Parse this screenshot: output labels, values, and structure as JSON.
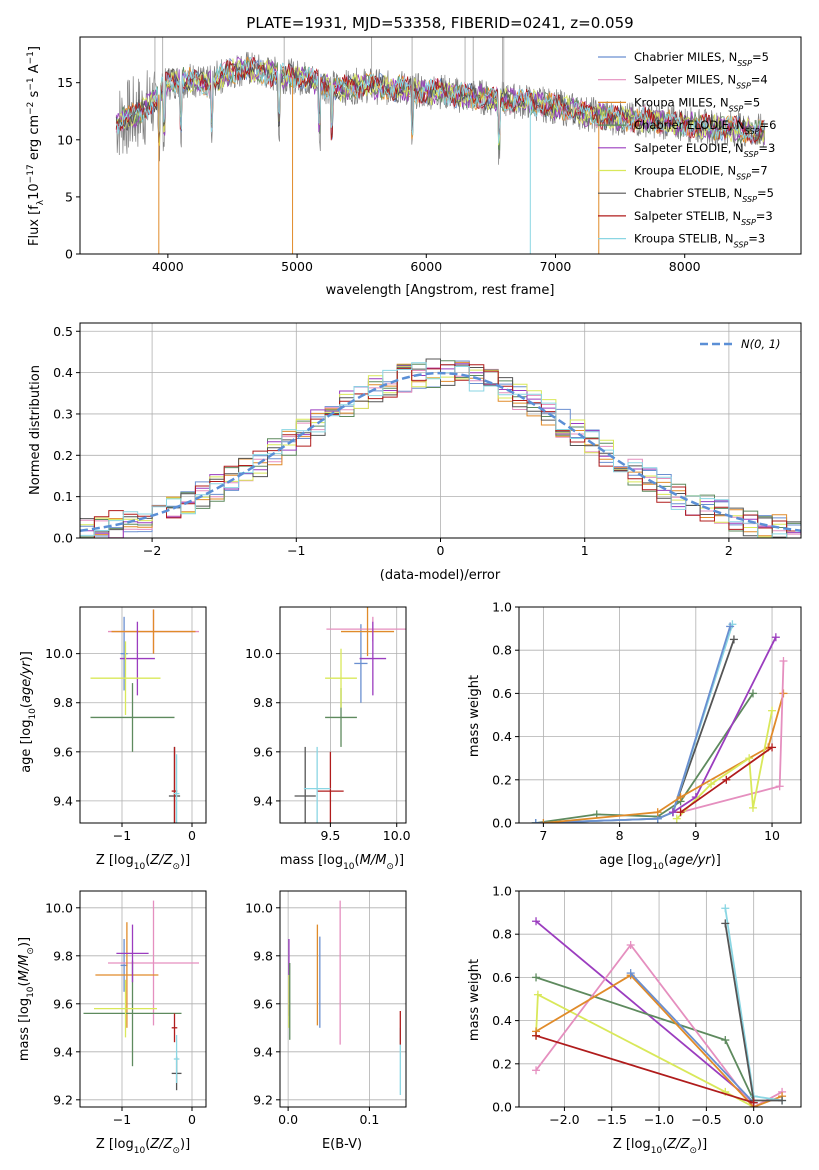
{
  "title": "PLATE=1931, MJD=53358, FIBERID=0241, z=0.059",
  "colors": [
    "#6a8fd0",
    "#e58fbf",
    "#e08b2a",
    "#5e8a5e",
    "#9b3dbf",
    "#d9e85a",
    "#555555",
    "#b01c1c",
    "#8ad6e3"
  ],
  "legend": [
    "Chabrier MILES, N$_{SSP}$=5",
    "Salpeter MILES, N$_{SSP}$=4",
    "Kroupa MILES, N$_{SSP}$=5",
    "Chabrier ELODIE, N$_{SSP}$=6",
    "Salpeter ELODIE, N$_{SSP}$=3",
    "Kroupa ELODIE, N$_{SSP}$=7",
    "Chabrier STELIB, N$_{SSP}$=5",
    "Salpeter STELIB, N$_{SSP}$=3",
    "Kroupa STELIB, N$_{SSP}$=3"
  ],
  "legend_display": [
    [
      "Chabrier MILES, N",
      "SSP",
      "=5"
    ],
    [
      "Salpeter MILES, N",
      "SSP",
      "=4"
    ],
    [
      "Kroupa MILES, N",
      "SSP",
      "=5"
    ],
    [
      "Chabrier ELODIE, N",
      "SSP",
      "=6"
    ],
    [
      "Salpeter ELODIE, N",
      "SSP",
      "=3"
    ],
    [
      "Kroupa ELODIE, N",
      "SSP",
      "=7"
    ],
    [
      "Chabrier STELIB, N",
      "SSP",
      "=5"
    ],
    [
      "Salpeter STELIB, N",
      "SSP",
      "=3"
    ],
    [
      "Kroupa STELIB, N",
      "SSP",
      "=3"
    ]
  ],
  "chart_data": [
    {
      "type": "line",
      "panel": "spectrum",
      "xlabel": "wavelength [Angstrom, rest frame]",
      "ylabel": "Flux [f_λ10^-17 erg cm^-2 s^-1 A^-1]",
      "xlim": [
        3320,
        8900
      ],
      "ylim": [
        0,
        19
      ],
      "xticks": [
        4000,
        5000,
        6000,
        7000,
        8000
      ],
      "yticks": [
        0,
        5,
        10,
        15
      ],
      "x": [
        3600,
        3700,
        3800,
        3900,
        4000,
        4100,
        4200,
        4300,
        4400,
        4500,
        4600,
        4700,
        4800,
        4900,
        5000,
        5100,
        5200,
        5300,
        5400,
        5500,
        5600,
        5700,
        5800,
        5900,
        6000,
        6100,
        6200,
        6300,
        6400,
        6500,
        6600,
        6700,
        6800,
        6900,
        7000,
        7100,
        7200,
        7300,
        7400,
        7500,
        7600,
        7700,
        7800,
        7900,
        8000,
        8100,
        8200,
        8300,
        8400,
        8500,
        8600
      ],
      "model_y": [
        11.5,
        12.0,
        12.5,
        13.5,
        15.0,
        15.2,
        15.3,
        14.8,
        15.5,
        16.0,
        16.3,
        16.0,
        15.8,
        15.6,
        15.5,
        15.3,
        14.8,
        14.5,
        14.6,
        14.8,
        14.7,
        14.5,
        14.6,
        14.3,
        14.2,
        14.3,
        14.0,
        13.8,
        13.8,
        13.6,
        13.5,
        13.4,
        13.3,
        13.1,
        12.9,
        12.7,
        12.4,
        12.2,
        12.0,
        11.9,
        11.7,
        11.8,
        11.6,
        11.5,
        11.4,
        11.2,
        11.1,
        11.0,
        11.0,
        10.8,
        10.7
      ]
    },
    {
      "type": "histogram",
      "panel": "residuals",
      "xlabel": "(data-model)/error",
      "ylabel": "Normed distribution",
      "xlim": [
        -2.5,
        2.5
      ],
      "ylim": [
        0,
        0.52
      ],
      "xticks": [
        -2,
        -1,
        0,
        1,
        2
      ],
      "yticks": [
        0.0,
        0.1,
        0.2,
        0.3,
        0.4,
        0.5
      ],
      "bin_width": 0.1,
      "reference_label": "$\\mathcal{N}(0,1)$",
      "reference_display": "N(0, 1)",
      "reference": "gaussian mean 0 sigma 1"
    },
    {
      "type": "scatter",
      "panel": "Z-age",
      "xlabel": "Z [log10(Z/Z⊙)]",
      "ylabel": "age [log10(age/yr)]",
      "xlim": [
        -1.6,
        0.2
      ],
      "ylim": [
        9.31,
        10.19
      ],
      "xticks": [
        -1,
        0
      ],
      "yticks": [
        9.4,
        9.6,
        9.8,
        10.0
      ],
      "points": [
        {
          "x": -0.97,
          "y": 10.0,
          "xerr": 0.05,
          "yerr": 0.15,
          "c": 0
        },
        {
          "x": -0.55,
          "y": 10.09,
          "xerr": 0.65,
          "yerr": 0.09,
          "c": 1
        },
        {
          "x": -0.55,
          "y": 10.09,
          "xerr": 0.6,
          "yerr": 0.09,
          "c": 2
        },
        {
          "x": -0.85,
          "y": 9.74,
          "xerr": 0.6,
          "yerr": 0.14,
          "c": 3
        },
        {
          "x": -0.78,
          "y": 9.98,
          "xerr": 0.25,
          "yerr": 0.15,
          "c": 4
        },
        {
          "x": -0.95,
          "y": 9.9,
          "xerr": 0.5,
          "yerr": 0.15,
          "c": 5
        },
        {
          "x": -0.25,
          "y": 9.42,
          "xerr": 0.08,
          "yerr": 0.2,
          "c": 6
        },
        {
          "x": -0.25,
          "y": 9.44,
          "xerr": 0.04,
          "yerr": 0.18,
          "c": 7
        },
        {
          "x": -0.22,
          "y": 9.43,
          "xerr": 0.04,
          "yerr": 0.16,
          "c": 8
        }
      ]
    },
    {
      "type": "scatter",
      "panel": "mass-age",
      "xlabel": "mass [log10(M/M⊙)]",
      "ylabel": "",
      "xlim": [
        9.12,
        10.07
      ],
      "ylim": [
        9.31,
        10.19
      ],
      "xticks": [
        9.5,
        10.0
      ],
      "yticks": [
        9.4,
        9.6,
        9.8,
        10.0
      ],
      "points": [
        {
          "x": 9.73,
          "y": 9.96,
          "xerr": 0.05,
          "yerr": 0.16,
          "c": 0
        },
        {
          "x": 9.82,
          "y": 10.1,
          "xerr": 0.35,
          "yerr": 0.05,
          "c": 1
        },
        {
          "x": 9.78,
          "y": 10.09,
          "xerr": 0.2,
          "yerr": 0.1,
          "c": 2
        },
        {
          "x": 9.58,
          "y": 9.74,
          "xerr": 0.12,
          "yerr": 0.12,
          "c": 3
        },
        {
          "x": 9.82,
          "y": 9.98,
          "xerr": 0.1,
          "yerr": 0.15,
          "c": 4
        },
        {
          "x": 9.58,
          "y": 9.9,
          "xerr": 0.12,
          "yerr": 0.12,
          "c": 5
        },
        {
          "x": 9.31,
          "y": 9.42,
          "xerr": 0.08,
          "yerr": 0.2,
          "c": 6
        },
        {
          "x": 9.5,
          "y": 9.44,
          "xerr": 0.1,
          "yerr": 0.16,
          "c": 7
        },
        {
          "x": 9.4,
          "y": 9.45,
          "xerr": 0.1,
          "yerr": 0.17,
          "c": 8
        }
      ]
    },
    {
      "type": "line",
      "panel": "age-weight",
      "xlabel": "age [log10(age/yr)]",
      "ylabel": "mass weight",
      "xlim": [
        6.68,
        10.38
      ],
      "ylim": [
        0,
        1.0
      ],
      "xticks": [
        7,
        8,
        9,
        10
      ],
      "yticks": [
        0.0,
        0.2,
        0.4,
        0.6,
        0.8,
        1.0
      ],
      "series": [
        {
          "c": 3,
          "x": [
            6.9,
            7.7,
            8.5,
            8.8,
            9.75
          ],
          "y": [
            0.0,
            0.04,
            0.03,
            0.1,
            0.6
          ]
        },
        {
          "c": 6,
          "x": [
            6.9,
            8.5,
            8.7,
            9.5
          ],
          "y": [
            0.0,
            0.02,
            0.05,
            0.85
          ]
        },
        {
          "c": 8,
          "x": [
            6.9,
            8.5,
            8.7,
            9.48
          ],
          "y": [
            0.0,
            0.02,
            0.05,
            0.92
          ]
        },
        {
          "c": 0,
          "x": [
            6.9,
            8.5,
            8.7,
            9.45
          ],
          "y": [
            0.0,
            0.02,
            0.05,
            0.91
          ]
        },
        {
          "c": 4,
          "x": [
            8.7,
            9.0,
            10.05
          ],
          "y": [
            0.05,
            0.12,
            0.86
          ]
        },
        {
          "c": 2,
          "x": [
            7.0,
            8.5,
            8.8,
            9.95,
            10.15
          ],
          "y": [
            0.0,
            0.05,
            0.12,
            0.35,
            0.6
          ]
        },
        {
          "c": 1,
          "x": [
            8.8,
            10.1,
            10.15
          ],
          "y": [
            0.05,
            0.17,
            0.75
          ]
        },
        {
          "c": 5,
          "x": [
            8.75,
            9.2,
            9.7,
            9.75,
            10.0
          ],
          "y": [
            0.02,
            0.18,
            0.3,
            0.07,
            0.52
          ]
        },
        {
          "c": 7,
          "x": [
            8.8,
            9.4,
            10.0
          ],
          "y": [
            0.05,
            0.2,
            0.35
          ]
        }
      ]
    },
    {
      "type": "scatter",
      "panel": "Z-mass",
      "xlabel": "Z [log10(Z/Z⊙)]",
      "ylabel": "mass [log10(M/M⊙)]",
      "xlim": [
        -1.6,
        0.2
      ],
      "ylim": [
        9.17,
        10.07
      ],
      "xticks": [
        -1,
        0
      ],
      "yticks": [
        9.2,
        9.4,
        9.6,
        9.8,
        10.0
      ],
      "points": [
        {
          "x": -0.97,
          "y": 9.76,
          "xerr": 0.05,
          "yerr": 0.11,
          "c": 0
        },
        {
          "x": -0.55,
          "y": 9.77,
          "xerr": 0.65,
          "yerr": 0.26,
          "c": 1
        },
        {
          "x": -0.93,
          "y": 9.72,
          "xerr": 0.45,
          "yerr": 0.22,
          "c": 2
        },
        {
          "x": -0.85,
          "y": 9.56,
          "xerr": 0.7,
          "yerr": 0.22,
          "c": 3
        },
        {
          "x": -0.85,
          "y": 9.81,
          "xerr": 0.23,
          "yerr": 0.12,
          "c": 4
        },
        {
          "x": -0.95,
          "y": 9.58,
          "xerr": 0.45,
          "yerr": 0.12,
          "c": 5
        },
        {
          "x": -0.22,
          "y": 9.31,
          "xerr": 0.07,
          "yerr": 0.07,
          "c": 6
        },
        {
          "x": -0.25,
          "y": 9.5,
          "xerr": 0.04,
          "yerr": 0.06,
          "c": 7
        },
        {
          "x": -0.22,
          "y": 9.37,
          "xerr": 0.04,
          "yerr": 0.1,
          "c": 8
        }
      ]
    },
    {
      "type": "scatter",
      "panel": "EBV-mass",
      "xlabel": "E(B-V)",
      "ylabel": "",
      "xlim": [
        -0.01,
        0.145
      ],
      "ylim": [
        9.17,
        10.07
      ],
      "xticks": [
        0.0,
        0.1
      ],
      "yticks": [
        9.2,
        9.4,
        9.6,
        9.8,
        10.0
      ],
      "points": [
        {
          "x": 0.001,
          "y": 9.71,
          "yerr": 0.16,
          "c": 4
        },
        {
          "x": 0.001,
          "y": 9.61,
          "yerr": 0.11,
          "c": 5
        },
        {
          "x": 0.002,
          "y": 9.61,
          "yerr": 0.16,
          "c": 3
        },
        {
          "x": 0.036,
          "y": 9.72,
          "yerr": 0.21,
          "c": 2
        },
        {
          "x": 0.039,
          "y": 9.69,
          "yerr": 0.19,
          "c": 0
        },
        {
          "x": 0.064,
          "y": 9.73,
          "yerr": 0.3,
          "c": 1
        },
        {
          "x": 0.138,
          "y": 9.36,
          "yerr": 0.14,
          "c": 8
        },
        {
          "x": 0.138,
          "y": 9.5,
          "yerr": 0.07,
          "c": 7
        }
      ]
    },
    {
      "type": "line",
      "panel": "Z-weight",
      "xlabel": "Z [log10(Z/Z⊙)]",
      "ylabel": "mass weight",
      "xlim": [
        -2.48,
        0.5
      ],
      "ylim": [
        0,
        1.0
      ],
      "xticks": [
        -2.0,
        -1.5,
        -1.0,
        -0.5,
        0.0
      ],
      "yticks": [
        0.0,
        0.2,
        0.4,
        0.6,
        0.8,
        1.0
      ],
      "series": [
        {
          "c": 4,
          "x": [
            -2.3,
            0.0
          ],
          "y": [
            0.86,
            0.02
          ]
        },
        {
          "c": 3,
          "x": [
            -2.3,
            -0.3,
            0.0
          ],
          "y": [
            0.6,
            0.31,
            0.03
          ]
        },
        {
          "c": 5,
          "x": [
            -2.3,
            -2.28,
            -0.3,
            0.0
          ],
          "y": [
            0.33,
            0.52,
            0.07,
            0.0
          ]
        },
        {
          "c": 1,
          "x": [
            -2.3,
            -1.3,
            0.0,
            0.3
          ],
          "y": [
            0.17,
            0.75,
            0.0,
            0.07
          ]
        },
        {
          "c": 2,
          "x": [
            -2.3,
            -1.3,
            0.0,
            0.3
          ],
          "y": [
            0.35,
            0.61,
            0.0,
            0.05
          ]
        },
        {
          "c": 0,
          "x": [
            -1.3,
            0.0
          ],
          "y": [
            0.62,
            0.02
          ]
        },
        {
          "c": 8,
          "x": [
            -0.3,
            0.0,
            0.3
          ],
          "y": [
            0.92,
            0.05,
            0.03
          ]
        },
        {
          "c": 6,
          "x": [
            -0.3,
            0.0,
            0.3
          ],
          "y": [
            0.85,
            0.03,
            0.03
          ]
        },
        {
          "c": 7,
          "x": [
            -2.3,
            0.0
          ],
          "y": [
            0.33,
            0.02
          ]
        }
      ]
    }
  ]
}
